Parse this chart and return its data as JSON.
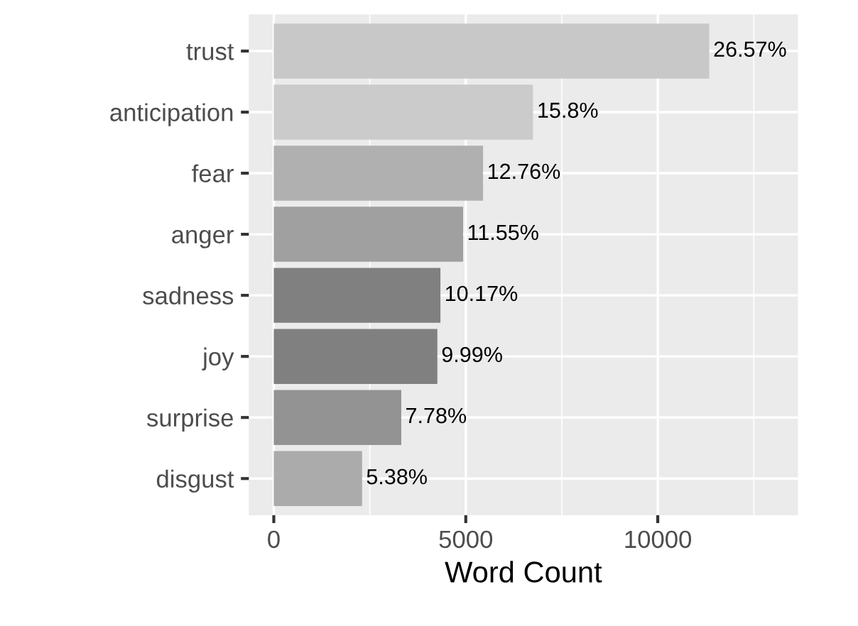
{
  "chart_data": {
    "type": "bar",
    "orientation": "horizontal",
    "xlabel": "Word Count",
    "categories": [
      "trust",
      "anticipation",
      "fear",
      "anger",
      "sadness",
      "joy",
      "surprise",
      "disgust"
    ],
    "values": [
      11340,
      6750,
      5450,
      4930,
      4340,
      4260,
      3320,
      2300
    ],
    "annotations": [
      {
        "text": "26.57%",
        "x": 11340,
        "y": "trust"
      },
      {
        "text": "15.8%",
        "x": 6750,
        "y": "anticipation"
      },
      {
        "text": "12.76%",
        "x": 5450,
        "y": "fear"
      },
      {
        "text": "11.55%",
        "x": 4930,
        "y": "anger"
      },
      {
        "text": "10.17%",
        "x": 4340,
        "y": "sadness"
      },
      {
        "text": "9.99%",
        "x": 4260,
        "y": "joy"
      },
      {
        "text": "7.78%",
        "x": 3320,
        "y": "surprise"
      },
      {
        "text": "5.38%",
        "x": 2300,
        "y": "disgust"
      }
    ],
    "colors": [
      "#c8c8c8",
      "#cbcbcb",
      "#b0b0b0",
      "#a0a0a0",
      "#808080",
      "#808080",
      "#939393",
      "#ababab"
    ],
    "xlim": [
      -650,
      13650
    ],
    "xticks": [
      0,
      5000,
      10000
    ],
    "grid": true
  }
}
